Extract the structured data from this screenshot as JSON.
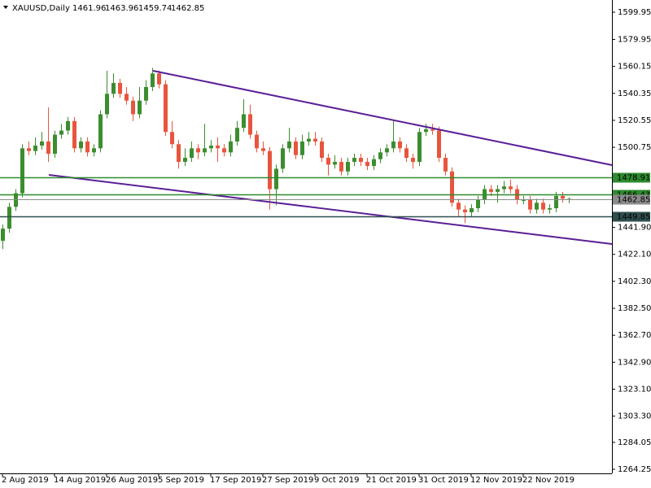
{
  "chart_data": {
    "type": "candlestick",
    "title": "XAUUSD,Daily",
    "bull_color": "#3c8d2f",
    "bear_color": "#e8553d",
    "categories": [
      "2 Aug 2019",
      null,
      null,
      null,
      null,
      null,
      null,
      null,
      "14 Aug 2019",
      null,
      null,
      null,
      null,
      null,
      null,
      null,
      "26 Aug 2019",
      null,
      null,
      null,
      null,
      null,
      null,
      null,
      "5 Sep 2019",
      null,
      null,
      null,
      null,
      null,
      null,
      null,
      "17 Sep 2019",
      null,
      null,
      null,
      null,
      null,
      null,
      null,
      "27 Sep 2019",
      null,
      null,
      null,
      null,
      null,
      null,
      null,
      "9 Oct 2019",
      null,
      null,
      null,
      null,
      null,
      null,
      null,
      "21 Oct 2019",
      null,
      null,
      null,
      null,
      null,
      null,
      null,
      "31 Oct 2019",
      null,
      null,
      null,
      null,
      null,
      null,
      null,
      "12 Nov 2019",
      null,
      null,
      null,
      null,
      null,
      null,
      null,
      "22 Nov 2019",
      null,
      null,
      null,
      null,
      null,
      null,
      null
    ],
    "open": [
      1432,
      1441,
      1457,
      1467,
      1500,
      1498,
      1502,
      1505,
      1496,
      1510,
      1513,
      1520,
      1500,
      1505,
      1497,
      1500,
      1525,
      1540,
      1548,
      1540,
      1535,
      1525,
      1535,
      1545,
      1555,
      1547,
      1512,
      1503,
      1490,
      1493,
      1500,
      1497,
      1500,
      1502,
      1500,
      1497,
      1505,
      1515,
      1525,
      1510,
      1500,
      1498,
      1470,
      1485,
      1500,
      1505,
      1495,
      1505,
      1507,
      1505,
      1493,
      1488,
      1490,
      1483,
      1490,
      1493,
      1490,
      1487,
      1492,
      1497,
      1500,
      1505,
      1500,
      1493,
      1490,
      1512,
      1514,
      1513,
      1493,
      1483,
      1460,
      1455,
      1453,
      1456,
      1462,
      1470,
      1468,
      1470,
      1472,
      1470,
      1462,
      1462,
      1455,
      1460,
      1455,
      1456,
      1465,
      1461.96
    ],
    "high": [
      1444,
      1460,
      1470,
      1503,
      1505,
      1508,
      1512,
      1530,
      1513,
      1518,
      1523,
      1523,
      1508,
      1508,
      1503,
      1528,
      1557,
      1555,
      1551,
      1545,
      1538,
      1545,
      1550,
      1559,
      1557,
      1550,
      1520,
      1506,
      1500,
      1505,
      1503,
      1518,
      1506,
      1508,
      1503,
      1510,
      1520,
      1536,
      1532,
      1513,
      1505,
      1501,
      1488,
      1503,
      1515,
      1508,
      1510,
      1512,
      1512,
      1508,
      1496,
      1495,
      1493,
      1493,
      1496,
      1496,
      1493,
      1495,
      1500,
      1503,
      1520,
      1508,
      1503,
      1496,
      1515,
      1518,
      1518,
      1516,
      1496,
      1486,
      1463,
      1458,
      1459,
      1465,
      1473,
      1473,
      1473,
      1476,
      1477,
      1473,
      1465,
      1465,
      1463,
      1463,
      1459,
      1468,
      1468,
      1463.96
    ],
    "low": [
      1426,
      1438,
      1454,
      1464,
      1495,
      1495,
      1499,
      1490,
      1493,
      1507,
      1510,
      1497,
      1497,
      1494,
      1494,
      1497,
      1522,
      1537,
      1537,
      1532,
      1520,
      1522,
      1532,
      1542,
      1544,
      1509,
      1500,
      1485,
      1487,
      1490,
      1492,
      1494,
      1497,
      1490,
      1494,
      1494,
      1502,
      1512,
      1507,
      1497,
      1495,
      1455,
      1458,
      1482,
      1497,
      1492,
      1492,
      1502,
      1502,
      1490,
      1480,
      1485,
      1480,
      1480,
      1487,
      1487,
      1484,
      1484,
      1489,
      1494,
      1497,
      1497,
      1490,
      1485,
      1487,
      1509,
      1510,
      1490,
      1480,
      1457,
      1450,
      1445,
      1450,
      1453,
      1459,
      1465,
      1460,
      1467,
      1467,
      1459,
      1459,
      1452,
      1452,
      1452,
      1452,
      1453,
      1460,
      1459.74
    ],
    "close": [
      1441,
      1457,
      1467,
      1500,
      1498,
      1502,
      1505,
      1496,
      1510,
      1513,
      1520,
      1500,
      1505,
      1497,
      1500,
      1525,
      1540,
      1548,
      1540,
      1535,
      1525,
      1535,
      1545,
      1555,
      1547,
      1512,
      1503,
      1490,
      1493,
      1500,
      1497,
      1500,
      1502,
      1500,
      1497,
      1505,
      1515,
      1525,
      1510,
      1500,
      1498,
      1470,
      1485,
      1500,
      1505,
      1495,
      1505,
      1507,
      1505,
      1493,
      1488,
      1490,
      1483,
      1490,
      1493,
      1490,
      1487,
      1492,
      1497,
      1500,
      1505,
      1500,
      1493,
      1490,
      1512,
      1514,
      1513,
      1493,
      1483,
      1460,
      1455,
      1453,
      1456,
      1462,
      1470,
      1468,
      1470,
      1472,
      1470,
      1462,
      1462,
      1455,
      1460,
      1455,
      1456,
      1465,
      1463,
      1462.85
    ],
    "ylim": [
      1261.26,
      1608.91
    ],
    "yticks": [
      1599.95,
      1579.95,
      1560.15,
      1540.35,
      1520.55,
      1500.75,
      {
        "value": 1441.9,
        "label": "1441.90"
      },
      {
        "value": 1422.1,
        "label": "1422.10"
      },
      {
        "value": 1402.3,
        "label": "1402.30"
      },
      {
        "value": 1382.5,
        "label": "1382.50"
      },
      {
        "value": 1362.7,
        "label": "1362.70"
      },
      {
        "value": 1342.9,
        "label": "1342.90"
      },
      {
        "value": 1323.1,
        "label": "1323.10"
      },
      {
        "value": 1303.3,
        "label": "1303.30"
      },
      1284.05,
      1264.25
    ],
    "levels": [
      {
        "value": 1478.91,
        "color": "#2e8b2e"
      },
      {
        "value": 1466.43,
        "color": "#2e8b2e"
      },
      {
        "value": 1462.85,
        "color": "#8c8c8c"
      },
      {
        "value": 1449.85,
        "color": "#2f4f4f"
      }
    ]
  }
}
